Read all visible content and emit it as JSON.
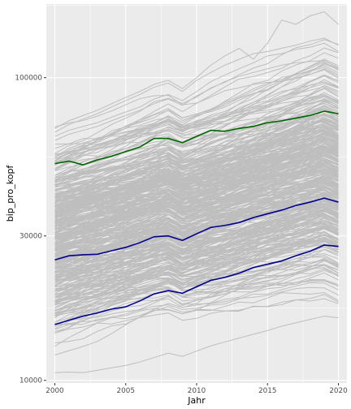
{
  "chart_data": {
    "type": "line",
    "title": "",
    "xlabel": "Jahr",
    "ylabel": "bip_pro_kopf",
    "xlim": [
      1999.4,
      2020.6
    ],
    "ylim": [
      9800,
      175000
    ],
    "y_scale": "log10",
    "x_ticks": [
      2000,
      2005,
      2010,
      2015,
      2020
    ],
    "y_ticks": [
      10000,
      30000,
      100000
    ],
    "y_tick_labels": [
      "10000",
      "30000",
      "100000"
    ],
    "grid": true,
    "legend": "none",
    "colors": {
      "panel_background": "#ebebeb",
      "grid_line": "#ffffff",
      "background_lines": "#bebebe",
      "highlight_blue": "#00008b",
      "highlight_green": "#006400"
    },
    "years": [
      2000,
      2001,
      2002,
      2003,
      2004,
      2005,
      2006,
      2007,
      2008,
      2009,
      2010,
      2011,
      2012,
      2013,
      2014,
      2015,
      2016,
      2017,
      2018,
      2019,
      2020
    ],
    "background_series_count": 400,
    "background_min_start": 10500,
    "background_max_start": 80000,
    "extreme_series": [
      {
        "values": [
          68000,
          72000,
          75000,
          78000,
          82000,
          86000,
          90000,
          95000,
          98000,
          92000,
          100000,
          110000,
          118000,
          125000,
          115000,
          130000,
          155000,
          150000,
          160000,
          165000,
          150000
        ]
      },
      {
        "values": [
          66000,
          70000,
          73000,
          76000,
          80000,
          84000,
          88000,
          93000,
          96000,
          90000,
          98000,
          104000,
          110000,
          115000,
          120000,
          122000,
          125000,
          128000,
          132000,
          135000,
          128000
        ]
      },
      {
        "values": [
          64000,
          67000,
          69000,
          71000,
          74000,
          77000,
          80000,
          85000,
          88000,
          84000,
          90000,
          97000,
          102000,
          107000,
          112000,
          118000,
          120000,
          124000,
          126000,
          130000,
          122000
        ]
      },
      {
        "values": [
          62000,
          65000,
          67000,
          69000,
          72000,
          75000,
          78000,
          82000,
          85000,
          81000,
          87000,
          92000,
          97000,
          101000,
          104000,
          107000,
          110000,
          112000,
          113000,
          114000,
          108000
        ]
      },
      {
        "values": [
          10600,
          10650,
          10600,
          10800,
          11000,
          11200,
          11500,
          11900,
          12300,
          12000,
          12500,
          13000,
          13400,
          13800,
          14200,
          14600,
          15100,
          15500,
          15900,
          16300,
          16100
        ]
      }
    ],
    "series": [
      {
        "color": "#006400",
        "values": [
          52000,
          53000,
          51500,
          53500,
          55000,
          57000,
          59000,
          63000,
          63000,
          61000,
          64000,
          67000,
          66500,
          68000,
          69000,
          71000,
          72000,
          73500,
          75000,
          77500,
          76000
        ]
      },
      {
        "color": "#00008b",
        "values": [
          25000,
          25800,
          26000,
          26100,
          26800,
          27500,
          28500,
          29800,
          30000,
          29000,
          30500,
          32000,
          32500,
          33200,
          34500,
          35500,
          36500,
          37800,
          38800,
          40000,
          38800
        ]
      },
      {
        "color": "#00008b",
        "values": [
          15300,
          15800,
          16300,
          16700,
          17200,
          17500,
          18300,
          19300,
          19800,
          19400,
          20400,
          21400,
          21900,
          22600,
          23600,
          24200,
          24800,
          25800,
          26700,
          28000,
          27700
        ]
      }
    ]
  }
}
